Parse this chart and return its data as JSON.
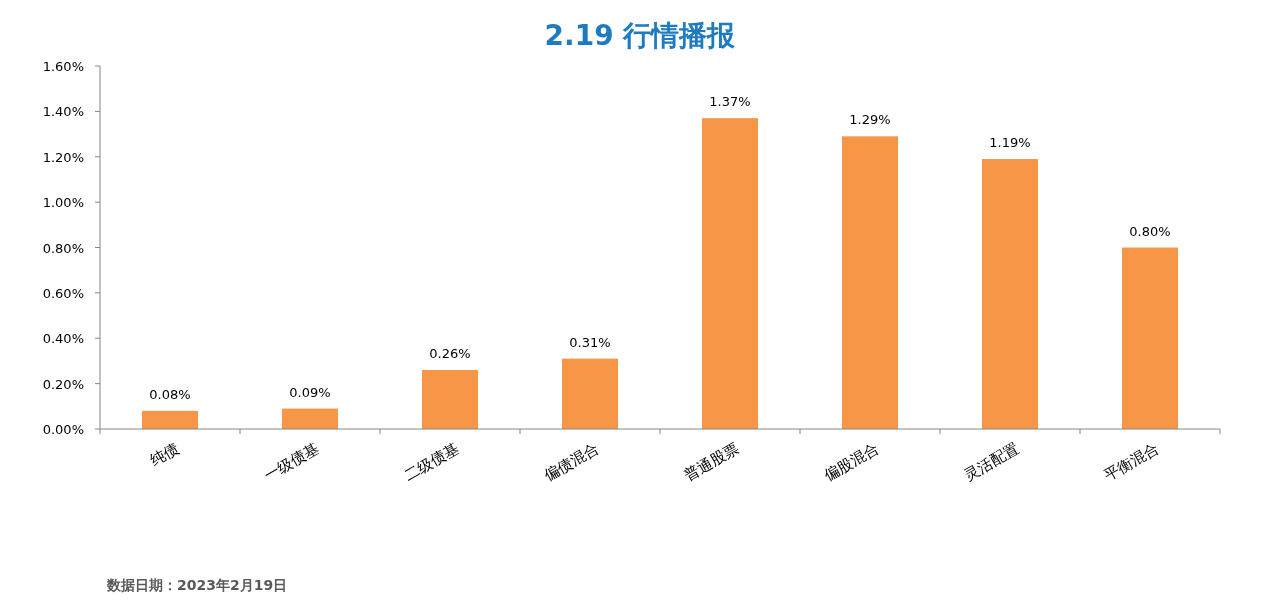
{
  "chart_data": {
    "type": "bar",
    "title": "2.19 行情播报",
    "categories": [
      "纯债",
      "一级债基",
      "二级债基",
      "偏债混合",
      "普通股票",
      "偏股混合",
      "灵活配置",
      "平衡混合"
    ],
    "values": [
      0.08,
      0.09,
      0.26,
      0.31,
      1.37,
      1.29,
      1.19,
      0.8
    ],
    "value_labels": [
      "0.08%",
      "0.09%",
      "0.26%",
      "0.31%",
      "1.37%",
      "1.29%",
      "1.19%",
      "0.80%"
    ],
    "color": "#f79646",
    "ylim": [
      0,
      1.6
    ],
    "yticks": [
      {
        "value": 0,
        "label": "0.00%"
      },
      {
        "value": 0.2,
        "label": "0.20%"
      },
      {
        "value": 0.4,
        "label": "0.40%"
      },
      {
        "value": 0.6,
        "label": "0.60%"
      },
      {
        "value": 0.8,
        "label": "0.80%"
      },
      {
        "value": 1.0,
        "label": "1.00%"
      },
      {
        "value": 1.2,
        "label": "1.20%"
      },
      {
        "value": 1.4,
        "label": "1.40%"
      },
      {
        "value": 1.6,
        "label": "1.60%"
      }
    ],
    "grid": false,
    "annotations": [
      "数据日期：2023年2月19日"
    ]
  }
}
